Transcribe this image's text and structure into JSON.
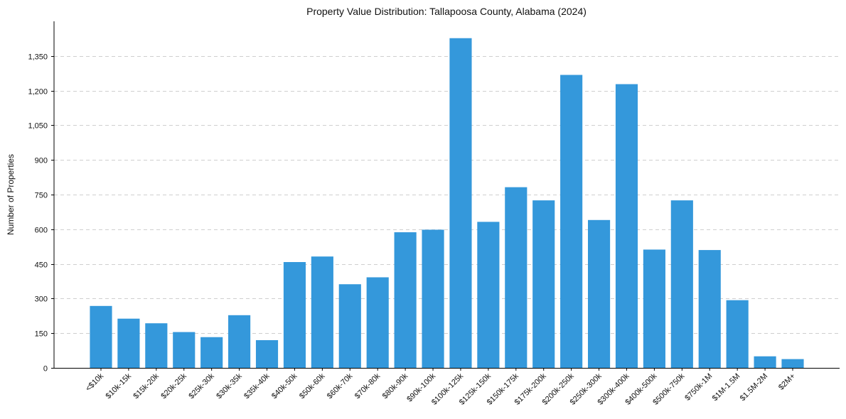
{
  "chart_data": {
    "type": "bar",
    "title": "Property Value Distribution: Tallapoosa County, Alabama (2024)",
    "xlabel": "",
    "ylabel": "Number of Properties",
    "categories": [
      "<$10k",
      "$10k-15k",
      "$15k-20k",
      "$20k-25k",
      "$25k-30k",
      "$30k-35k",
      "$35k-40k",
      "$40k-50k",
      "$50k-60k",
      "$60k-70k",
      "$70k-80k",
      "$80k-90k",
      "$90k-100k",
      "$100k-125k",
      "$125k-150k",
      "$150k-175k",
      "$175k-200k",
      "$200k-250k",
      "$250k-300k",
      "$300k-400k",
      "$400k-500k",
      "$500k-750k",
      "$750k-1M",
      "$1M-1.5M",
      "$1.5M-2M",
      "$2M+"
    ],
    "values": [
      268,
      213,
      193,
      155,
      133,
      228,
      120,
      458,
      482,
      362,
      392,
      587,
      598,
      1427,
      632,
      782,
      725,
      1268,
      640,
      1228,
      512,
      725,
      510,
      293,
      50,
      38
    ],
    "yticks": [
      0,
      150,
      300,
      450,
      600,
      750,
      900,
      1050,
      1200,
      1350
    ],
    "ytick_labels": [
      "0",
      "150",
      "300",
      "450",
      "600",
      "750",
      "900",
      "1,050",
      "1,200",
      "1,350"
    ],
    "ylim": [
      0,
      1500
    ],
    "grid": "horizontal dashed",
    "bar_color": "#3498db"
  }
}
